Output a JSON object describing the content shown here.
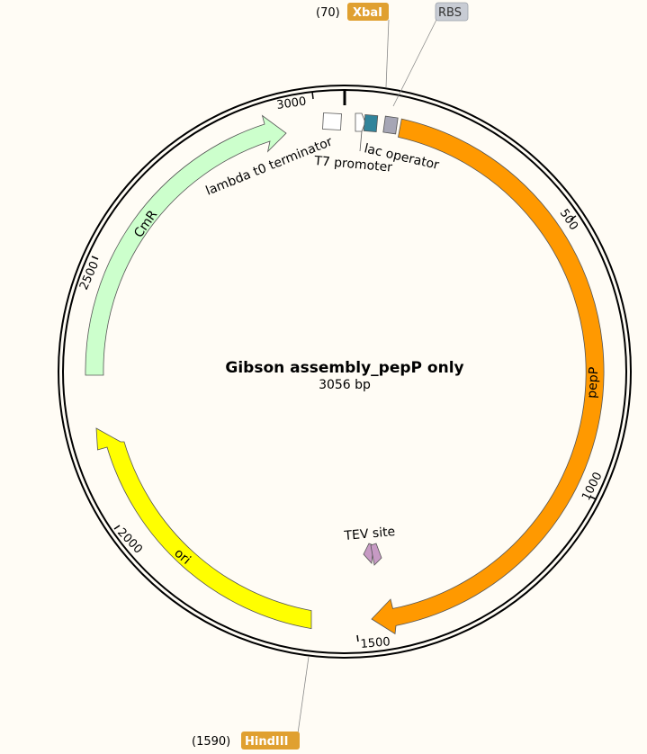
{
  "plasmid": {
    "name": "Gibson assembly_pepP only",
    "length_label": "3056 bp",
    "length_bp": 3056
  },
  "ticks": [
    {
      "bp": 500,
      "label": "500"
    },
    {
      "bp": 1000,
      "label": "1000"
    },
    {
      "bp": 1500,
      "label": "1500"
    },
    {
      "bp": 2000,
      "label": "2000"
    },
    {
      "bp": 2500,
      "label": "2500"
    },
    {
      "bp": 3000,
      "label": "3000"
    }
  ],
  "sites": {
    "xbai": {
      "position": "(70)",
      "name": "XbaI",
      "bp": 70
    },
    "hindiii": {
      "position": "(1590)",
      "name": "HindIII",
      "bp": 1590
    },
    "rbs": {
      "name": "RBS"
    }
  },
  "features": {
    "pepp": {
      "name": "pepP",
      "color": "#ff9900"
    },
    "cmr": {
      "name": "CmR",
      "color": "#ccffcc"
    },
    "ori": {
      "name": "ori",
      "color": "#ffff00"
    },
    "lambda": {
      "name": "lambda t0 terminator"
    },
    "t7": {
      "name": "T7 promoter"
    },
    "lac": {
      "name": "lac operator",
      "color": "#31849b"
    },
    "rbs_box": {
      "color": "#a6a6b5"
    },
    "tev": {
      "name": "TEV site",
      "color": "#c79ac4"
    }
  },
  "colors": {
    "background": "#fffcf5",
    "site_label": "#e0a030",
    "rbs_label": "#c8ccd4"
  }
}
